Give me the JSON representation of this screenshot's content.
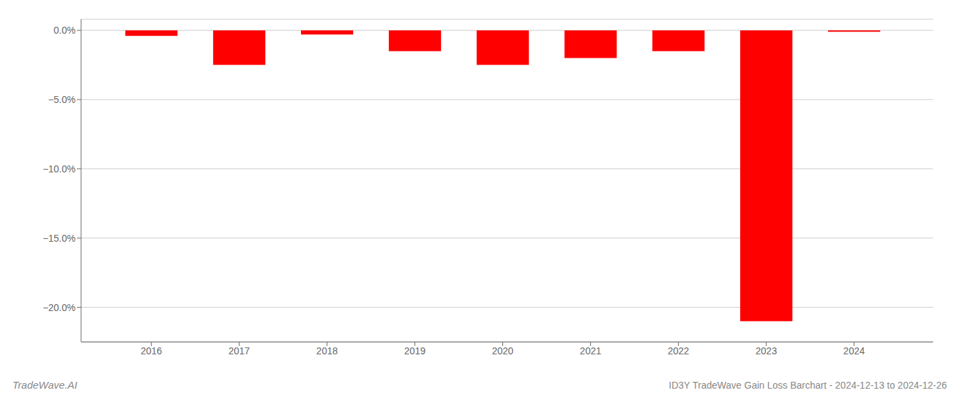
{
  "chart_data": {
    "type": "bar",
    "x": [
      2016,
      2017,
      2018,
      2019,
      2020,
      2021,
      2022,
      2023,
      2024
    ],
    "values": [
      -0.4,
      -2.5,
      -0.3,
      -1.5,
      -2.5,
      -2.0,
      -1.5,
      -21.0,
      -0.1
    ],
    "color": "#ff0000",
    "xlim": [
      2015.2,
      2024.9
    ],
    "xticks": [
      2016,
      2017,
      2018,
      2019,
      2020,
      2021,
      2022,
      2023,
      2024
    ],
    "ylim": [
      -22.5,
      0.8
    ],
    "yticks": [
      {
        "value": 0.0,
        "label": "0.0%"
      },
      {
        "value": -5.0,
        "label": "−5.0%"
      },
      {
        "value": -10.0,
        "label": "−10.0%"
      },
      {
        "value": -15.0,
        "label": "−15.0%"
      },
      {
        "value": -20.0,
        "label": "−20.0%"
      }
    ],
    "grid": true,
    "annotations": [
      "TradeWave.AI",
      "ID3Y TradeWave Gain Loss Barchart - 2024-12-13 to 2024-12-26"
    ]
  }
}
